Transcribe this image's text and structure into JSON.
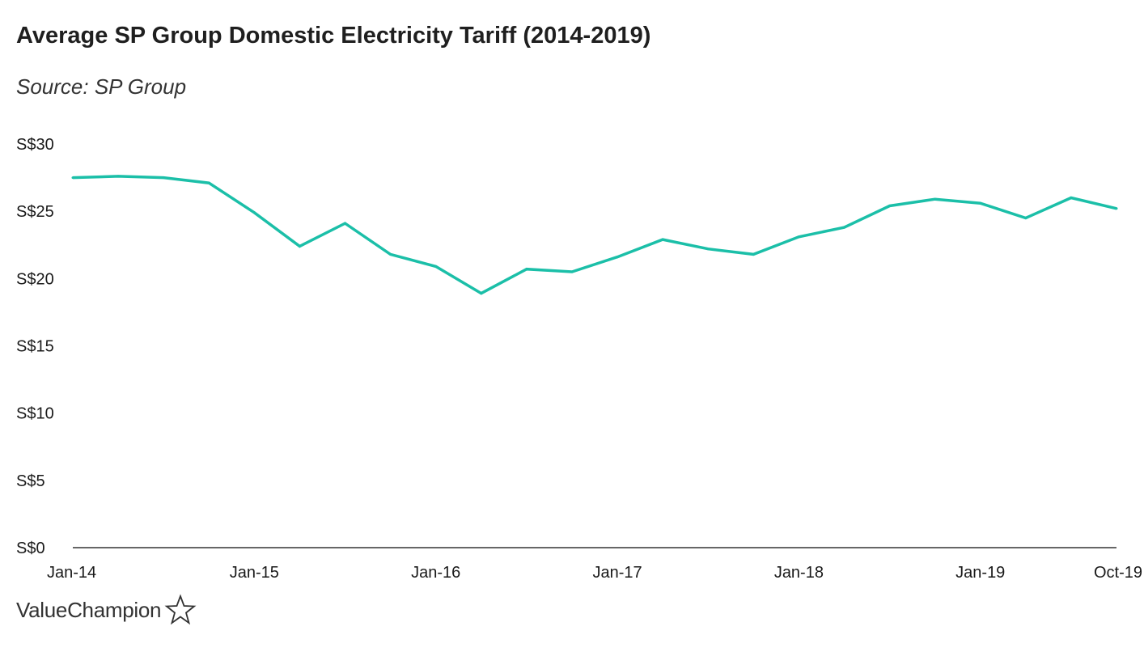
{
  "chart_data": {
    "type": "line",
    "title": "Average SP Group Domestic Electricity Tariff (2014-2019)",
    "subtitle": "Source: SP Group",
    "xlabel": "",
    "ylabel": "",
    "ylim": [
      0,
      30
    ],
    "y_ticks": [
      0,
      5,
      10,
      15,
      20,
      25,
      30
    ],
    "y_tick_labels": [
      "S$0",
      "S$5",
      "S$10",
      "S$15",
      "S$20",
      "S$25",
      "S$30"
    ],
    "x_tick_labels": [
      "Jan-14",
      "Jan-15",
      "Jan-16",
      "Jan-17",
      "Jan-18",
      "Jan-19",
      "Oct-19"
    ],
    "x_tick_quarters": [
      0,
      4,
      8,
      12,
      16,
      20,
      23
    ],
    "x": [
      "Jan-14",
      "Apr-14",
      "Jul-14",
      "Oct-14",
      "Jan-15",
      "Apr-15",
      "Jul-15",
      "Oct-15",
      "Jan-16",
      "Apr-16",
      "Jul-16",
      "Oct-16",
      "Jan-17",
      "Apr-17",
      "Jul-17",
      "Oct-17",
      "Jan-18",
      "Apr-18",
      "Jul-18",
      "Oct-18",
      "Jan-19",
      "Apr-19",
      "Jul-19",
      "Oct-19"
    ],
    "series": [
      {
        "name": "Average Domestic Electricity Tariff",
        "color": "#1bbfa8",
        "values": [
          27.5,
          27.6,
          27.5,
          27.1,
          24.9,
          22.4,
          24.1,
          21.8,
          20.9,
          18.9,
          20.7,
          20.5,
          21.6,
          22.9,
          22.2,
          21.8,
          23.1,
          23.8,
          25.4,
          25.9,
          25.6,
          24.5,
          26.0,
          25.2
        ]
      }
    ]
  },
  "brand": {
    "name": "ValueChampion",
    "icon": "star-outline-icon"
  }
}
